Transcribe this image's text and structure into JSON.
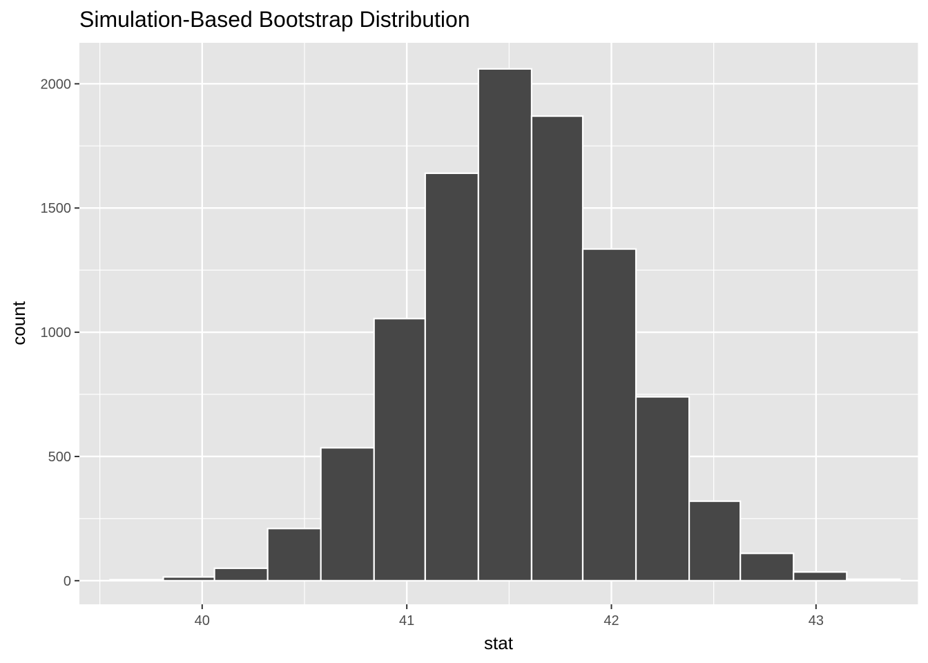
{
  "chart_data": {
    "type": "bar",
    "title": "Simulation-Based Bootstrap Distribution",
    "xlabel": "stat",
    "ylabel": "count",
    "bins": [
      {
        "x0": 39.55,
        "x1": 39.81,
        "count": 4
      },
      {
        "x0": 39.81,
        "x1": 40.06,
        "count": 15
      },
      {
        "x0": 40.06,
        "x1": 40.32,
        "count": 50
      },
      {
        "x0": 40.32,
        "x1": 40.58,
        "count": 210
      },
      {
        "x0": 40.58,
        "x1": 40.84,
        "count": 535
      },
      {
        "x0": 40.84,
        "x1": 41.09,
        "count": 1055
      },
      {
        "x0": 41.09,
        "x1": 41.35,
        "count": 1640
      },
      {
        "x0": 41.35,
        "x1": 41.61,
        "count": 2060
      },
      {
        "x0": 41.61,
        "x1": 41.86,
        "count": 1870
      },
      {
        "x0": 41.86,
        "x1": 42.12,
        "count": 1335
      },
      {
        "x0": 42.12,
        "x1": 42.38,
        "count": 740
      },
      {
        "x0": 42.38,
        "x1": 42.63,
        "count": 320
      },
      {
        "x0": 42.63,
        "x1": 42.89,
        "count": 110
      },
      {
        "x0": 42.89,
        "x1": 43.15,
        "count": 35
      },
      {
        "x0": 43.15,
        "x1": 43.41,
        "count": 6
      }
    ],
    "xlim": [
      39.4,
      43.5
    ],
    "ylim": [
      -95,
      2165
    ],
    "xticks": [
      40,
      41,
      42,
      43
    ],
    "xtick_labels": [
      "40",
      "41",
      "42",
      "43"
    ],
    "yticks": [
      0,
      500,
      1000,
      1500,
      2000
    ],
    "ytick_labels": [
      "0",
      "500",
      "1000",
      "1500",
      "2000"
    ],
    "grid": true,
    "legend": "none",
    "colors": {
      "panel_background": "#e5e5e5",
      "grid_line": "#ffffff",
      "bar_fill": "#474747",
      "bar_outline": "#ffffff",
      "tick_mark": "#333333",
      "tick_label": "#4d4d4d",
      "text": "#000000"
    }
  }
}
